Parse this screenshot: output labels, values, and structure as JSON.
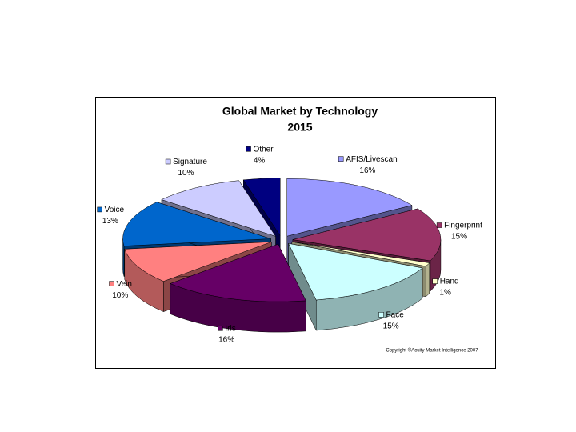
{
  "chart_data": {
    "type": "pie3d",
    "title": "Global Market by  Technology",
    "subtitle": "2015",
    "annotation": "Copyright ©Acuity Market Intelligence 2007",
    "categories": [
      "AFIS/Livescan",
      "Fingerprint",
      "Hand",
      "Face",
      "Iris",
      "Vein",
      "Voice",
      "Signature",
      "Other"
    ],
    "values": [
      16,
      15,
      1,
      15,
      16,
      10,
      13,
      10,
      4
    ],
    "value_labels": [
      "16%",
      "15%",
      "1%",
      "15%",
      "16%",
      "10%",
      "13%",
      "10%",
      "4%"
    ],
    "colors": [
      "#9999ff",
      "#993366",
      "#ffffcc",
      "#ccffff",
      "#660066",
      "#ff8080",
      "#0066cc",
      "#ccccff",
      "#000080"
    ]
  }
}
